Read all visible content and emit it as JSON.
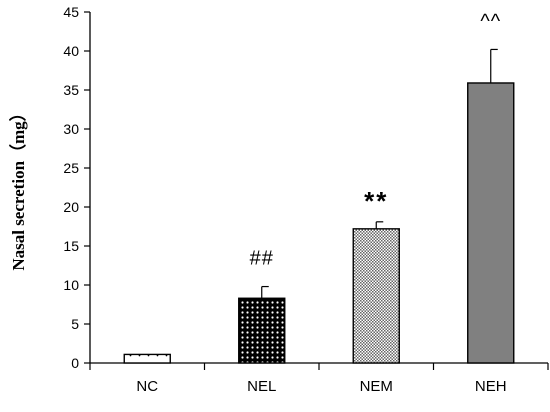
{
  "chart_data": {
    "type": "bar",
    "title": "",
    "xlabel": "",
    "ylabel": "Nasal secretion（mg）",
    "ylim": [
      0,
      45
    ],
    "yticks": [
      0,
      5,
      10,
      15,
      20,
      25,
      30,
      35,
      40,
      45
    ],
    "grid": false,
    "legend": "none",
    "categories": [
      "NC",
      "NEL",
      "NEM",
      "NEH"
    ],
    "values": [
      1.1,
      8.3,
      17.2,
      35.9
    ],
    "errors": [
      0.1,
      1.5,
      0.9,
      4.3
    ],
    "annotations": [
      "",
      "##",
      "**",
      "^^"
    ],
    "fills": [
      "dots-light",
      "dots-dense",
      "crosshatch",
      "solid-gray"
    ],
    "colors": {
      "bar_outline": "#000000",
      "solid_gray": "#808080",
      "axis": "#000000"
    }
  }
}
